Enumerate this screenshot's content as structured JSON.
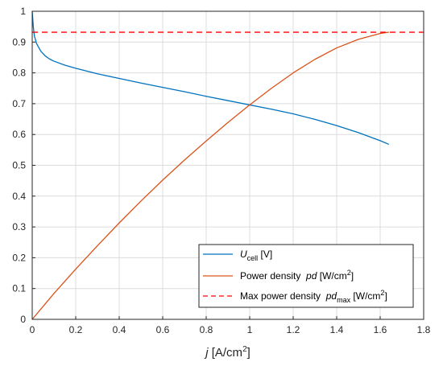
{
  "chart_data": {
    "type": "line",
    "xlim": [
      0,
      1.8
    ],
    "ylim": [
      0,
      1
    ],
    "x_ticks": [
      "0",
      "0.2",
      "0.4",
      "0.6",
      "0.8",
      "1",
      "1.2",
      "1.4",
      "1.6",
      "1.8"
    ],
    "y_ticks": [
      "0",
      "0.1",
      "0.2",
      "0.3",
      "0.4",
      "0.5",
      "0.6",
      "0.7",
      "0.8",
      "0.9",
      "1"
    ],
    "xlabel": {
      "italic": "j",
      "unit_pre": " [A/cm",
      "unit_sup": "2",
      "unit_post": "]"
    },
    "grid": true,
    "legend_position": "bottom-right",
    "series": [
      {
        "legend_main": "U",
        "legend_sub": "cell",
        "legend_unit": " [V]",
        "color": "#0072BD",
        "dash": "solid",
        "x": [
          0,
          0.005,
          0.01,
          0.02,
          0.04,
          0.06,
          0.08,
          0.1,
          0.15,
          0.2,
          0.3,
          0.4,
          0.5,
          0.6,
          0.7,
          0.8,
          0.9,
          1.0,
          1.1,
          1.2,
          1.3,
          1.4,
          1.5,
          1.6,
          1.64
        ],
        "y": [
          1.0,
          0.95,
          0.92,
          0.895,
          0.87,
          0.855,
          0.845,
          0.838,
          0.825,
          0.815,
          0.797,
          0.782,
          0.767,
          0.753,
          0.739,
          0.724,
          0.71,
          0.696,
          0.682,
          0.667,
          0.649,
          0.629,
          0.606,
          0.58,
          0.568
        ]
      },
      {
        "legend_main": "Power density  ",
        "legend_ital": "pd",
        "legend_unit_pre": " [W/cm",
        "legend_unit_sup": "2",
        "legend_unit_post": "]",
        "color": "#D95319",
        "dash": "solid",
        "x": [
          0,
          0.1,
          0.2,
          0.3,
          0.4,
          0.5,
          0.6,
          0.7,
          0.8,
          0.9,
          1.0,
          1.1,
          1.2,
          1.3,
          1.4,
          1.5,
          1.6,
          1.64
        ],
        "y": [
          0,
          0.084,
          0.163,
          0.239,
          0.313,
          0.384,
          0.452,
          0.517,
          0.579,
          0.639,
          0.696,
          0.75,
          0.8,
          0.844,
          0.881,
          0.909,
          0.928,
          0.932
        ]
      },
      {
        "legend_main": "Max power density  ",
        "legend_ital": "pd",
        "legend_sub": "max",
        "legend_unit_pre": " [W/cm",
        "legend_unit_sup": "2",
        "legend_unit_post": "]",
        "color": "#FF0000",
        "dash": "dashed",
        "x": [
          0,
          1.8
        ],
        "y": [
          0.932,
          0.932
        ]
      }
    ]
  }
}
